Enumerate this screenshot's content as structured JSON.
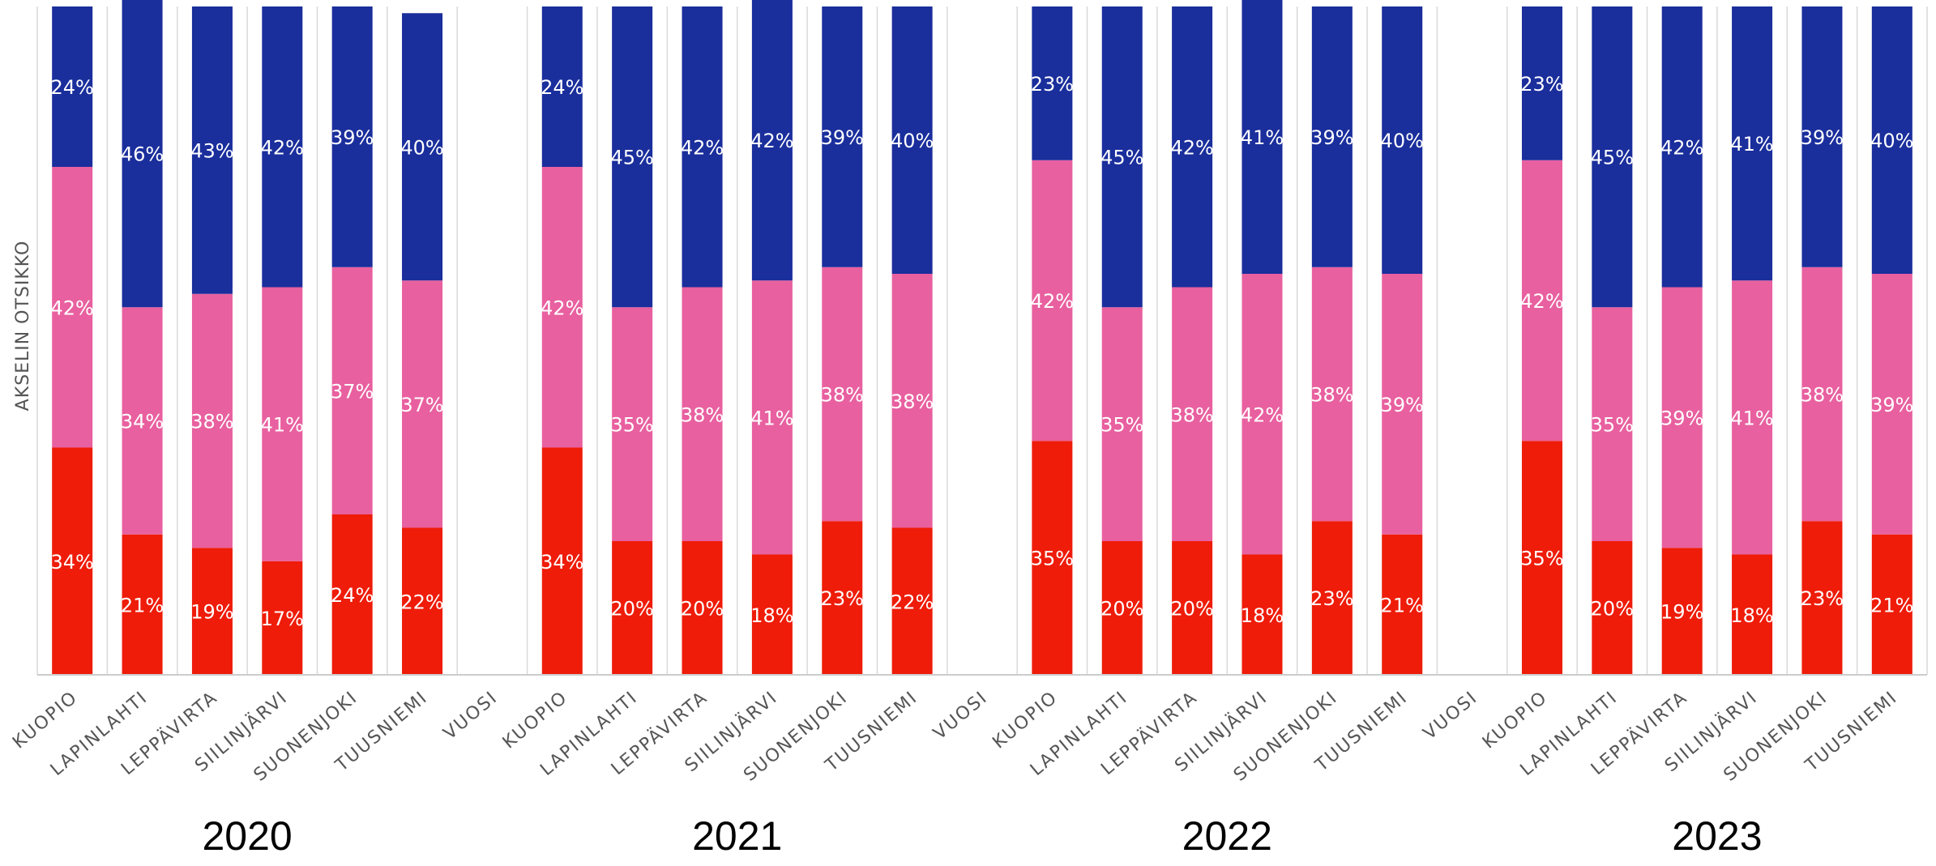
{
  "chart_data": {
    "type": "bar",
    "stacked": true,
    "orientation": "vertical",
    "normalized_percent": true,
    "ylabel": "AKSELIN OTSIKKO",
    "grid": true,
    "legend": "none",
    "colors": {
      "bottom": "#ee1c09",
      "middle": "#e8609f",
      "top": "#1a2e9c"
    },
    "year_gap_label": "VUOSI",
    "groups": [
      {
        "year": "2020",
        "categories": [
          "KUOPIO",
          "LAPINLAHTI",
          "LEPPÄVIRTA",
          "SIILINJÄRVI",
          "SUONENJOKI",
          "TUUSNIEMI"
        ],
        "series": [
          {
            "values": [
              34,
              21,
              19,
              17,
              24,
              22
            ],
            "labels": [
              "34%",
              "21%",
              "19%",
              "17%",
              "24%",
              "22%"
            ]
          },
          {
            "values": [
              42,
              34,
              38,
              41,
              37,
              37
            ],
            "labels": [
              "42%",
              "34%",
              "38%",
              "41%",
              "37%",
              "37%"
            ]
          },
          {
            "values": [
              24,
              46,
              43,
              42,
              39,
              40
            ],
            "labels": [
              "24%",
              "46%",
              "43%",
              "42%",
              "39%",
              "40%"
            ]
          }
        ]
      },
      {
        "year": "2021",
        "categories": [
          "KUOPIO",
          "LAPINLAHTI",
          "LEPPÄVIRTA",
          "SIILINJÄRVI",
          "SUONENJOKI",
          "TUUSNIEMI"
        ],
        "series": [
          {
            "values": [
              34,
              20,
              20,
              18,
              23,
              22
            ],
            "labels": [
              "34%",
              "20%",
              "20%",
              "18%",
              "23%",
              "22%"
            ]
          },
          {
            "values": [
              42,
              35,
              38,
              41,
              38,
              38
            ],
            "labels": [
              "42%",
              "35%",
              "38%",
              "41%",
              "38%",
              "38%"
            ]
          },
          {
            "values": [
              24,
              45,
              42,
              42,
              39,
              40
            ],
            "labels": [
              "24%",
              "45%",
              "42%",
              "42%",
              "39%",
              "40%"
            ]
          }
        ]
      },
      {
        "year": "2022",
        "categories": [
          "KUOPIO",
          "LAPINLAHTI",
          "LEPPÄVIRTA",
          "SIILINJÄRVI",
          "SUONENJOKI",
          "TUUSNIEMI"
        ],
        "series": [
          {
            "values": [
              35,
              20,
              20,
              18,
              23,
              21
            ],
            "labels": [
              "35%",
              "20%",
              "20%",
              "18%",
              "23%",
              "21%"
            ]
          },
          {
            "values": [
              42,
              35,
              38,
              42,
              38,
              39
            ],
            "labels": [
              "42%",
              "35%",
              "38%",
              "42%",
              "38%",
              "39%"
            ]
          },
          {
            "values": [
              23,
              45,
              42,
              41,
              39,
              40
            ],
            "labels": [
              "23%",
              "45%",
              "42%",
              "41%",
              "39%",
              "40%"
            ]
          }
        ]
      },
      {
        "year": "2023",
        "categories": [
          "KUOPIO",
          "LAPINLAHTI",
          "LEPPÄVIRTA",
          "SIILINJÄRVI",
          "SUONENJOKI",
          "TUUSNIEMI"
        ],
        "series": [
          {
            "values": [
              35,
              20,
              19,
              18,
              23,
              21
            ],
            "labels": [
              "35%",
              "20%",
              "19%",
              "18%",
              "23%",
              "21%"
            ]
          },
          {
            "values": [
              42,
              35,
              39,
              41,
              38,
              39
            ],
            "labels": [
              "42%",
              "35%",
              "39%",
              "41%",
              "38%",
              "39%"
            ]
          },
          {
            "values": [
              23,
              45,
              42,
              41,
              39,
              40
            ],
            "labels": [
              "23%",
              "45%",
              "42%",
              "41%",
              "39%",
              "40%"
            ]
          }
        ]
      }
    ]
  }
}
